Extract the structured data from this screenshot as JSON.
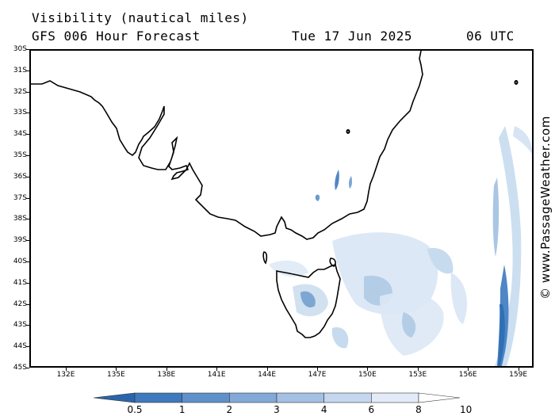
{
  "header": {
    "title": "Visibility (nautical miles)",
    "forecast": "GFS 006 Hour Forecast",
    "date": "Tue 17 Jun 2025",
    "time": "06 UTC"
  },
  "latitudes": [
    "30S",
    "31S",
    "32S",
    "33S",
    "34S",
    "35S",
    "36S",
    "37S",
    "38S",
    "39S",
    "40S",
    "41S",
    "42S",
    "43S",
    "44S",
    "45S"
  ],
  "longitudes": [
    "132E",
    "135E",
    "138E",
    "141E",
    "144E",
    "147E",
    "150E",
    "153E",
    "156E",
    "159E"
  ],
  "watermark": "© www.PassageWeather.com",
  "colorbar": {
    "labels": [
      "0.5",
      "1",
      "2",
      "3",
      "4",
      "6",
      "8",
      "10"
    ],
    "colors": [
      "#2b64ab",
      "#3f78bd",
      "#5f90ca",
      "#82a9d7",
      "#a4c1e3",
      "#c4d7ee",
      "#e2ebf7",
      "#ffffff"
    ]
  }
}
